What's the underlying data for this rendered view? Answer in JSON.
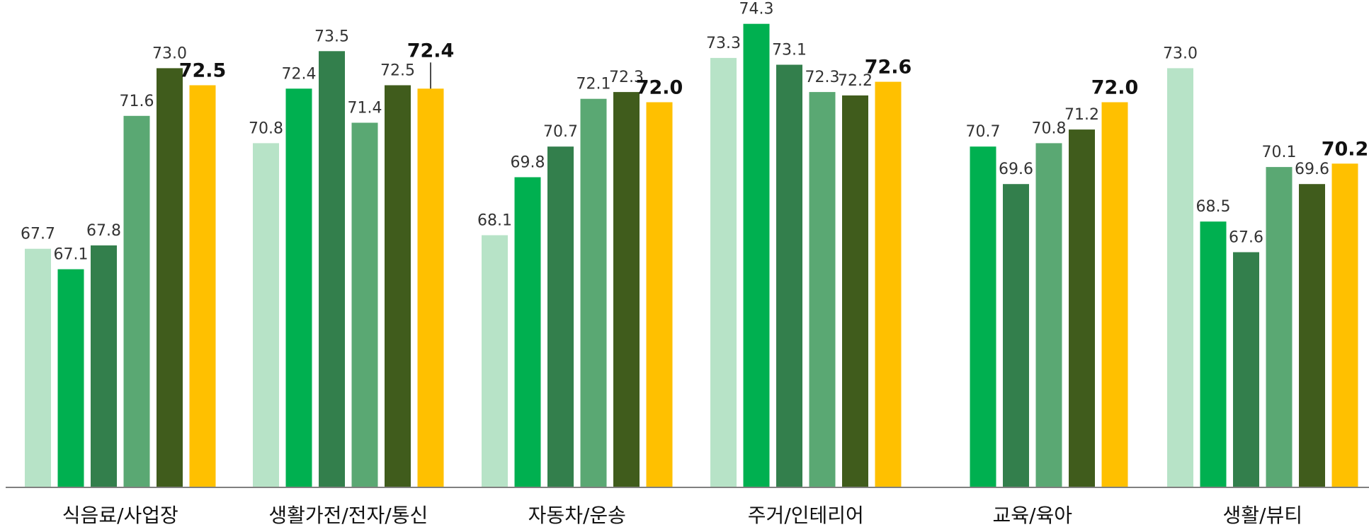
{
  "chart_data": {
    "type": "bar",
    "categories": [
      "식음료/사업장",
      "생활가전/전자/통신",
      "자동차/운송",
      "주거/인테리어",
      "교육/육아",
      "생활/뷰티"
    ],
    "series": [
      {
        "color": "#b7e3c7",
        "values": [
          67.7,
          70.8,
          68.1,
          73.3,
          null,
          73.0
        ]
      },
      {
        "color": "#00b050",
        "values": [
          67.1,
          72.4,
          69.8,
          74.3,
          70.7,
          68.5
        ]
      },
      {
        "color": "#337f4c",
        "values": [
          67.8,
          73.5,
          70.7,
          73.1,
          69.6,
          67.6
        ]
      },
      {
        "color": "#5aa873",
        "values": [
          71.6,
          71.4,
          72.1,
          72.3,
          70.8,
          70.1
        ]
      },
      {
        "color": "#405c1c",
        "values": [
          73.0,
          72.5,
          72.3,
          72.2,
          71.2,
          69.6
        ]
      },
      {
        "color": "#ffc000",
        "values": [
          72.5,
          72.4,
          72.0,
          72.6,
          72.0,
          70.2
        ]
      }
    ],
    "value_labels": [
      [
        "67.7",
        "70.8",
        "68.1",
        "73.3",
        "",
        "73.0"
      ],
      [
        "67.1",
        "72.4",
        "69.8",
        "74.3",
        "70.7",
        "68.5"
      ],
      [
        "67.8",
        "73.5",
        "70.7",
        "73.1",
        "69.6",
        "67.6"
      ],
      [
        "71.6",
        "71.4",
        "72.1",
        "72.3",
        "70.8",
        "70.1"
      ],
      [
        "73.0",
        "72.5",
        "72.3",
        "72.2",
        "71.2",
        "69.6"
      ],
      [
        "72.5",
        "72.4",
        "72.0",
        "72.6",
        "72.0",
        "70.2"
      ]
    ],
    "ylim": [
      60.7,
      75.0
    ],
    "legend": false,
    "grid": false,
    "baseline_color": "#808080"
  }
}
